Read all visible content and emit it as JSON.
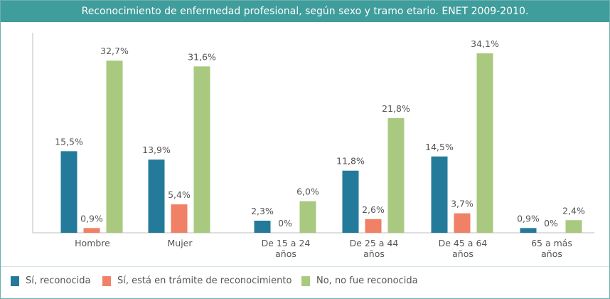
{
  "title": "Reconocimiento de enfermedad profesional, según sexo y tramo etario. ENET 2009-2010.",
  "chart_data": {
    "type": "bar",
    "title": "Reconocimiento de enfermedad profesional, según sexo y tramo etario. ENET 2009-2010.",
    "xlabel": "",
    "ylabel": "",
    "ylim": [
      0,
      38
    ],
    "grid": false,
    "legend_position": "bottom",
    "categories": [
      [
        "Hombre"
      ],
      [
        "Mujer"
      ],
      [
        "De 15 a 24",
        "años"
      ],
      [
        "De 25 a 44",
        "años"
      ],
      [
        "De 45 a 64",
        "años"
      ],
      [
        "65 a más",
        "años"
      ]
    ],
    "series": [
      {
        "name": "Sí, reconocida",
        "color": "#247a9a",
        "values": [
          15.5,
          13.9,
          2.3,
          11.8,
          14.5,
          0.9
        ],
        "labels": [
          "15,5%",
          "13,9%",
          "2,3%",
          "11,8%",
          "14,5%",
          "0,9%"
        ]
      },
      {
        "name": "Sí, está en trámite de reconocimiento",
        "color": "#f08066",
        "values": [
          0.9,
          5.4,
          0,
          2.6,
          3.7,
          0
        ],
        "labels": [
          "0,9%",
          "5,4%",
          "0%",
          "2,6%",
          "3,7%",
          "0%"
        ]
      },
      {
        "name": "No, no fue reconocida",
        "color": "#a8c97f",
        "values": [
          32.7,
          31.6,
          6.0,
          21.8,
          34.1,
          2.4
        ],
        "labels": [
          "32,7%",
          "31,6%",
          "6,0%",
          "21,8%",
          "34,1%",
          "2,4%"
        ]
      }
    ]
  }
}
